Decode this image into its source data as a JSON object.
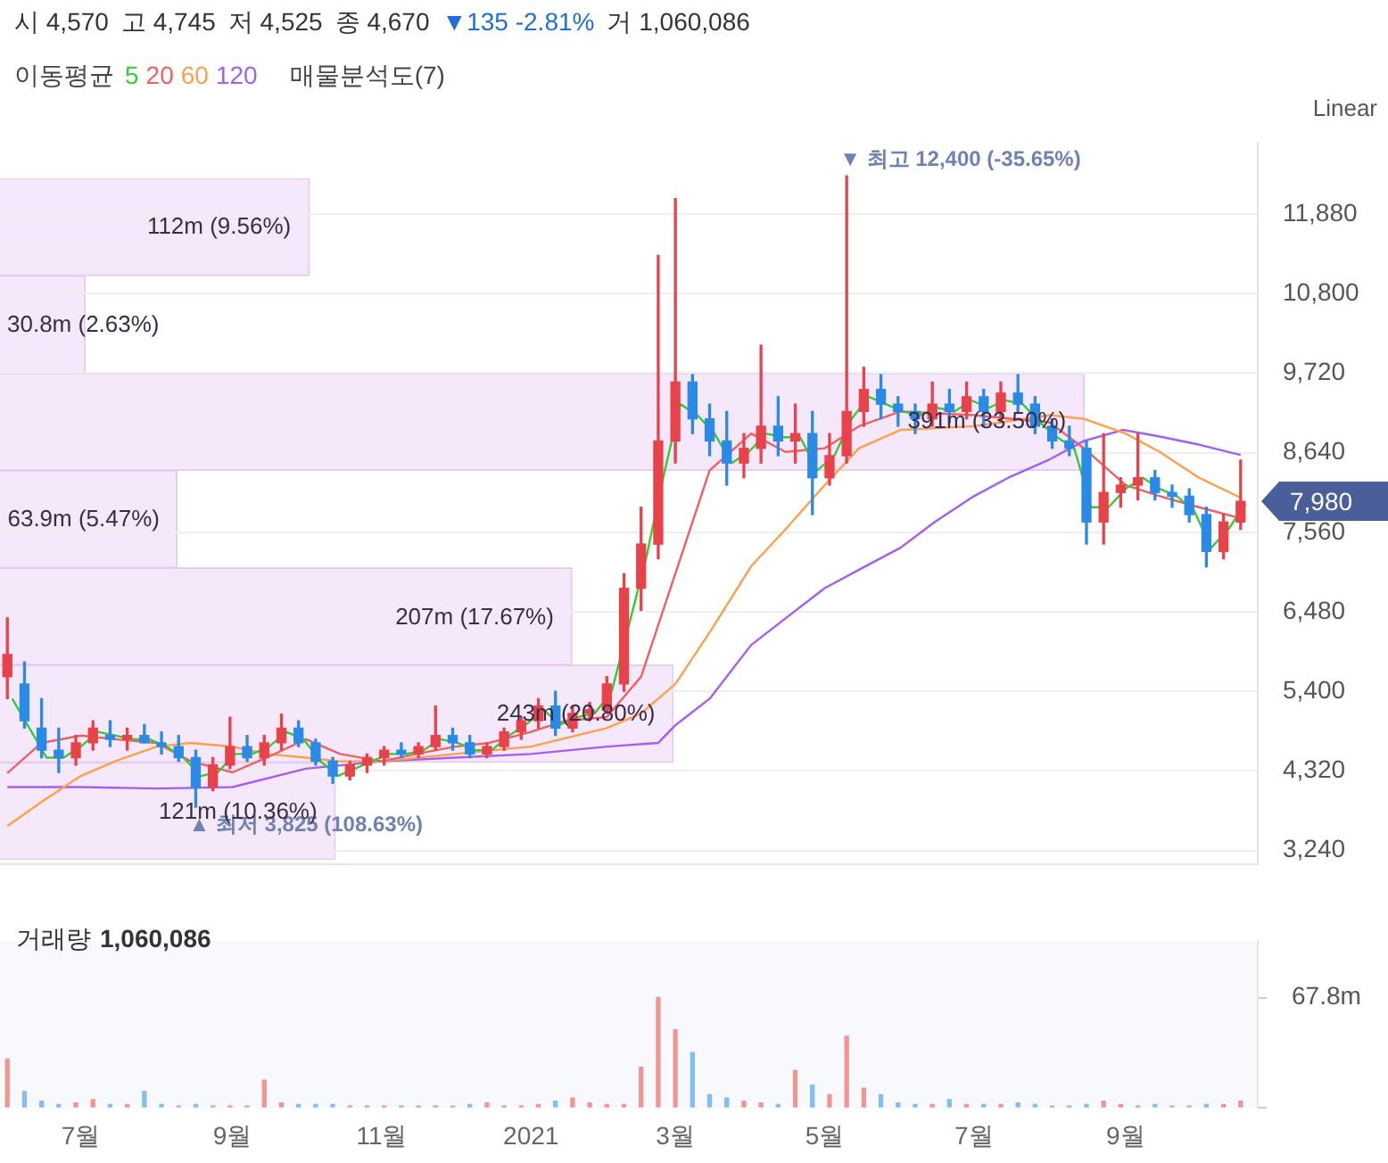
{
  "chart_data": [
    {
      "type": "candlestick",
      "legend_title": "이동평균",
      "legend": "top left",
      "grid": "y",
      "tick_labels": "y",
      "annotations": [
        "시 4,570",
        "고 4,745",
        "저 4,525",
        "종 4,670",
        "▼135 -2.81%",
        "거 1,060,086",
        "Linear",
        "7,980",
        {
          "text": "▼ 최고 12,400 (-35.65%)",
          "x": "2021-05-10",
          "y": 12400
        },
        {
          "text": "▲ 최저 3,825 (108.63%)",
          "x": "2020-08-17",
          "y": 3825
        }
      ],
      "xlim": [
        "2020-05-29",
        "2021-10-25"
      ],
      "ylim": [
        3050,
        12850
      ],
      "yticks": [
        {
          "value": 3240,
          "label": "3,240"
        },
        {
          "value": 4320,
          "label": "4,320"
        },
        {
          "value": 5400,
          "label": "5,400"
        },
        {
          "value": 6480,
          "label": "6,480"
        },
        {
          "value": 7560,
          "label": "7,560"
        },
        {
          "value": 8640,
          "label": "8,640"
        },
        {
          "value": 9720,
          "label": "9,720"
        },
        {
          "value": 10800,
          "label": "10,800"
        },
        {
          "value": 11880,
          "label": "11,880"
        }
      ],
      "x": [
        "2020-06-01",
        "2020-06-08",
        "2020-06-15",
        "2020-06-22",
        "2020-06-29",
        "2020-07-06",
        "2020-07-13",
        "2020-07-20",
        "2020-07-27",
        "2020-08-03",
        "2020-08-10",
        "2020-08-17",
        "2020-08-24",
        "2020-08-31",
        "2020-09-07",
        "2020-09-14",
        "2020-09-21",
        "2020-09-28",
        "2020-10-05",
        "2020-10-12",
        "2020-10-19",
        "2020-10-26",
        "2020-11-02",
        "2020-11-09",
        "2020-11-16",
        "2020-11-23",
        "2020-11-30",
        "2020-12-07",
        "2020-12-14",
        "2020-12-21",
        "2020-12-28",
        "2021-01-04",
        "2021-01-11",
        "2021-01-18",
        "2021-01-25",
        "2021-02-01",
        "2021-02-08",
        "2021-02-15",
        "2021-02-22",
        "2021-03-01",
        "2021-03-08",
        "2021-03-15",
        "2021-03-22",
        "2021-03-29",
        "2021-04-05",
        "2021-04-12",
        "2021-04-19",
        "2021-04-26",
        "2021-05-03",
        "2021-05-10",
        "2021-05-17",
        "2021-05-24",
        "2021-05-31",
        "2021-06-07",
        "2021-06-14",
        "2021-06-21",
        "2021-06-28",
        "2021-07-05",
        "2021-07-12",
        "2021-07-19",
        "2021-07-26",
        "2021-08-02",
        "2021-08-09",
        "2021-08-16",
        "2021-08-23",
        "2021-08-30",
        "2021-09-06",
        "2021-09-13",
        "2021-09-20",
        "2021-09-27",
        "2021-10-04",
        "2021-10-11",
        "2021-10-18"
      ],
      "ohlc": [
        [
          5600,
          6400,
          5300,
          5900
        ],
        [
          5500,
          5800,
          4900,
          5000
        ],
        [
          4900,
          5300,
          4500,
          4600
        ],
        [
          4600,
          4900,
          4300,
          4500
        ],
        [
          4500,
          4800,
          4400,
          4700
        ],
        [
          4700,
          5000,
          4600,
          4900
        ],
        [
          4800,
          5000,
          4650,
          4750
        ],
        [
          4750,
          4900,
          4600,
          4800
        ],
        [
          4800,
          4950,
          4700,
          4700
        ],
        [
          4700,
          4850,
          4550,
          4650
        ],
        [
          4650,
          4800,
          4450,
          4500
        ],
        [
          4500,
          4600,
          3825,
          4100
        ],
        [
          4100,
          4500,
          4050,
          4400
        ],
        [
          4400,
          5050,
          4350,
          4650
        ],
        [
          4650,
          4800,
          4450,
          4500
        ],
        [
          4500,
          4800,
          4400,
          4700
        ],
        [
          4700,
          5090,
          4600,
          4900
        ],
        [
          4900,
          5000,
          4650,
          4700
        ],
        [
          4700,
          4750,
          4400,
          4450
        ],
        [
          4450,
          4500,
          4150,
          4250
        ],
        [
          4250,
          4450,
          4200,
          4400
        ],
        [
          4400,
          4550,
          4300,
          4500
        ],
        [
          4500,
          4650,
          4400,
          4600
        ],
        [
          4600,
          4700,
          4500,
          4550
        ],
        [
          4550,
          4700,
          4500,
          4650
        ],
        [
          4650,
          5200,
          4600,
          4800
        ],
        [
          4800,
          4900,
          4600,
          4700
        ],
        [
          4700,
          4800,
          4500,
          4550
        ],
        [
          4550,
          4700,
          4500,
          4650
        ],
        [
          4650,
          4900,
          4600,
          4850
        ],
        [
          4850,
          5050,
          4750,
          5000
        ],
        [
          5000,
          5300,
          4900,
          5200
        ],
        [
          5200,
          5400,
          4800,
          4900
        ],
        [
          4900,
          5200,
          4850,
          5100
        ],
        [
          5100,
          5250,
          5000,
          5150
        ],
        [
          5150,
          5600,
          5100,
          5500
        ],
        [
          5500,
          7000,
          5400,
          6800
        ],
        [
          6800,
          7900,
          6500,
          7400
        ],
        [
          7400,
          11320,
          7200,
          8800
        ],
        [
          8800,
          12090,
          8500,
          9600
        ],
        [
          9600,
          9700,
          8900,
          9100
        ],
        [
          9100,
          9300,
          8600,
          8800
        ],
        [
          8800,
          9200,
          8200,
          8500
        ],
        [
          8500,
          8900,
          8300,
          8700
        ],
        [
          8700,
          10100,
          8500,
          9000
        ],
        [
          9000,
          9400,
          8600,
          8800
        ],
        [
          8800,
          9300,
          8500,
          8900
        ],
        [
          8900,
          9200,
          7800,
          8300
        ],
        [
          8300,
          8900,
          8200,
          8600
        ],
        [
          8600,
          12400,
          8500,
          9200
        ],
        [
          9200,
          9800,
          9000,
          9500
        ],
        [
          9500,
          9700,
          9100,
          9300
        ],
        [
          9300,
          9400,
          9000,
          9200
        ],
        [
          9200,
          9300,
          8900,
          9100
        ],
        [
          9100,
          9600,
          9000,
          9300
        ],
        [
          9300,
          9500,
          9050,
          9200
        ],
        [
          9200,
          9600,
          9100,
          9400
        ],
        [
          9400,
          9500,
          9000,
          9200
        ],
        [
          9200,
          9600,
          9050,
          9450
        ],
        [
          9450,
          9700,
          9200,
          9300
        ],
        [
          9300,
          9400,
          8900,
          9000
        ],
        [
          9000,
          9100,
          8700,
          8800
        ],
        [
          8800,
          9000,
          8600,
          8700
        ],
        [
          8700,
          8800,
          7400,
          7700
        ],
        [
          7700,
          8900,
          7400,
          8100
        ],
        [
          8100,
          8300,
          7900,
          8200
        ],
        [
          8200,
          8900,
          8000,
          8300
        ],
        [
          8300,
          8400,
          8000,
          8100
        ],
        [
          8100,
          8200,
          7900,
          8050
        ],
        [
          8050,
          8150,
          7700,
          7800
        ],
        [
          7800,
          7900,
          7090,
          7300
        ],
        [
          7300,
          7800,
          7200,
          7700
        ],
        [
          7700,
          8540,
          7600,
          7980
        ]
      ],
      "colors": [
        "#e8424a",
        "#2a8ae6",
        "#2a8ae6",
        "#2a8ae6",
        "#e8424a",
        "#e8424a",
        "#2a8ae6",
        "#e8424a",
        "#2a8ae6",
        "#2a8ae6",
        "#2a8ae6",
        "#2a8ae6",
        "#e8424a",
        "#e8424a",
        "#2a8ae6",
        "#e8424a",
        "#e8424a",
        "#2a8ae6",
        "#2a8ae6",
        "#2a8ae6",
        "#e8424a",
        "#e8424a",
        "#e8424a",
        "#2a8ae6",
        "#e8424a",
        "#e8424a",
        "#2a8ae6",
        "#2a8ae6",
        "#e8424a",
        "#e8424a",
        "#e8424a",
        "#e8424a",
        "#2a8ae6",
        "#e8424a",
        "#e8424a",
        "#e8424a",
        "#e8424a",
        "#e8424a",
        "#e8424a",
        "#e8424a",
        "#2a8ae6",
        "#2a8ae6",
        "#2a8ae6",
        "#e8424a",
        "#e8424a",
        "#2a8ae6",
        "#e8424a",
        "#2a8ae6",
        "#e8424a",
        "#e8424a",
        "#e8424a",
        "#2a8ae6",
        "#2a8ae6",
        "#2a8ae6",
        "#e8424a",
        "#2a8ae6",
        "#e8424a",
        "#2a8ae6",
        "#e8424a",
        "#2a8ae6",
        "#2a8ae6",
        "#2a8ae6",
        "#2a8ae6",
        "#2a8ae6",
        "#e8424a",
        "#e8424a",
        "#e8424a",
        "#2a8ae6",
        "#2a8ae6",
        "#2a8ae6",
        "#2a8ae6",
        "#e8424a",
        "#e8424a"
      ],
      "series": [
        {
          "name": "5",
          "color": "#33cc33",
          "type": "line",
          "x": [
            "2020-06-03",
            "2020-06-10",
            "2020-06-17",
            "2020-06-24",
            "2020-07-01",
            "2020-07-08",
            "2020-07-15",
            "2020-07-22",
            "2020-07-29",
            "2020-08-05",
            "2020-08-12",
            "2020-08-19",
            "2020-08-26",
            "2020-09-02",
            "2020-09-09",
            "2020-09-16",
            "2020-09-23",
            "2020-09-30",
            "2020-10-07",
            "2020-10-14",
            "2020-10-21",
            "2020-10-28",
            "2020-11-04",
            "2020-11-11",
            "2020-11-18",
            "2020-11-25",
            "2020-12-02",
            "2020-12-09",
            "2020-12-16",
            "2020-12-23",
            "2020-12-30",
            "2021-01-06",
            "2021-01-13",
            "2021-01-20",
            "2021-01-27",
            "2021-02-03",
            "2021-02-10",
            "2021-02-17",
            "2021-02-24",
            "2021-03-03",
            "2021-03-10",
            "2021-03-17",
            "2021-03-24",
            "2021-03-31",
            "2021-04-07",
            "2021-04-14",
            "2021-04-21",
            "2021-04-28",
            "2021-05-05",
            "2021-05-12",
            "2021-05-19",
            "2021-05-26",
            "2021-06-02",
            "2021-06-09",
            "2021-06-16",
            "2021-06-23",
            "2021-06-30",
            "2021-07-07",
            "2021-07-14",
            "2021-07-21",
            "2021-07-28",
            "2021-08-04",
            "2021-08-11",
            "2021-08-18",
            "2021-08-25",
            "2021-09-01",
            "2021-09-08",
            "2021-09-15",
            "2021-09-22",
            "2021-09-29",
            "2021-10-06",
            "2021-10-13",
            "2021-10-20"
          ],
          "values": [
            5300,
            4900,
            4500,
            4500,
            4650,
            4850,
            4800,
            4750,
            4750,
            4650,
            4500,
            4250,
            4300,
            4550,
            4550,
            4650,
            4850,
            4750,
            4450,
            4250,
            4350,
            4450,
            4550,
            4550,
            4600,
            4750,
            4700,
            4600,
            4600,
            4800,
            4950,
            5150,
            4950,
            5050,
            5100,
            5400,
            6300,
            7200,
            8300,
            9300,
            9150,
            8900,
            8500,
            8650,
            8900,
            8850,
            8850,
            8400,
            8600,
            9100,
            9400,
            9300,
            9200,
            9150,
            9250,
            9200,
            9350,
            9250,
            9350,
            9300,
            9050,
            8850,
            8700,
            7900,
            7900,
            8150,
            8300,
            8150,
            8050,
            7850,
            7350,
            7600,
            7950
          ]
        },
        {
          "name": "20",
          "color": "#f06060",
          "type": "line",
          "x": [
            "2020-06-01",
            "2020-06-15",
            "2020-07-01",
            "2020-07-15",
            "2020-08-01",
            "2020-08-15",
            "2020-09-01",
            "2020-09-15",
            "2020-10-01",
            "2020-10-15",
            "2020-11-01",
            "2020-11-15",
            "2020-12-01",
            "2020-12-15",
            "2021-01-01",
            "2021-01-15",
            "2021-02-01",
            "2021-02-15",
            "2021-03-01",
            "2021-03-15",
            "2021-04-01",
            "2021-04-15",
            "2021-05-01",
            "2021-05-15",
            "2021-06-01",
            "2021-07-01",
            "2021-08-01",
            "2021-08-15",
            "2021-09-01",
            "2021-09-15",
            "2021-10-01",
            "2021-10-18"
          ],
          "values": [
            4290,
            4700,
            4800,
            4750,
            4700,
            4450,
            4300,
            4500,
            4750,
            4550,
            4450,
            4550,
            4650,
            4700,
            4850,
            5000,
            5050,
            5600,
            7000,
            8400,
            8900,
            8650,
            8700,
            9000,
            9200,
            9150,
            9050,
            8700,
            8200,
            8050,
            7900,
            7750
          ]
        },
        {
          "name": "60",
          "color": "#ff9f4a",
          "type": "line",
          "x": [
            "2020-06-01",
            "2020-06-15",
            "2020-07-01",
            "2020-07-15",
            "2020-08-01",
            "2020-08-15",
            "2020-09-01",
            "2020-09-15",
            "2020-10-01",
            "2020-10-15",
            "2020-11-01",
            "2020-12-01",
            "2021-01-01",
            "2021-02-01",
            "2021-02-15",
            "2021-03-01",
            "2021-03-15",
            "2021-04-01",
            "2021-04-15",
            "2021-05-01",
            "2021-05-15",
            "2021-06-01",
            "2021-07-01",
            "2021-08-01",
            "2021-08-15",
            "2021-09-01",
            "2021-09-15",
            "2021-10-01",
            "2021-10-18"
          ],
          "values": [
            3570,
            3900,
            4250,
            4450,
            4650,
            4700,
            4650,
            4550,
            4500,
            4450,
            4450,
            4550,
            4650,
            4900,
            5100,
            5500,
            6200,
            7100,
            7600,
            8200,
            8700,
            8950,
            9000,
            9150,
            9100,
            8900,
            8650,
            8300,
            8030
          ]
        },
        {
          "name": "120",
          "color": "#a45ef0",
          "type": "line",
          "x": [
            "2020-06-01",
            "2020-07-01",
            "2020-08-01",
            "2020-09-01",
            "2020-10-01",
            "2020-11-01",
            "2020-12-01",
            "2021-01-01",
            "2021-02-01",
            "2021-02-22",
            "2021-03-01",
            "2021-03-15",
            "2021-04-01",
            "2021-04-15",
            "2021-05-01",
            "2021-05-15",
            "2021-06-01",
            "2021-06-15",
            "2021-07-01",
            "2021-07-15",
            "2021-08-01",
            "2021-08-15",
            "2021-08-31",
            "2021-09-15",
            "2021-10-01",
            "2021-10-18"
          ],
          "values": [
            4100,
            4100,
            4080,
            4100,
            4350,
            4450,
            4500,
            4550,
            4650,
            4700,
            4940,
            5300,
            6030,
            6390,
            6800,
            7050,
            7350,
            7700,
            8050,
            8300,
            8550,
            8800,
            8950,
            8860,
            8750,
            8610
          ]
        }
      ]
    },
    {
      "type": "bar",
      "title": "거래량",
      "annotations": [
        "1,060,086"
      ],
      "xlim": [
        "2020-05-29",
        "2021-10-25"
      ],
      "xticks": [
        {
          "value": "2020-07-01",
          "label": "7월"
        },
        {
          "value": "2020-09-01",
          "label": "9월"
        },
        {
          "value": "2020-11-01",
          "label": "11월"
        },
        {
          "value": "2021-01-01",
          "label": "2021"
        },
        {
          "value": "2021-03-01",
          "label": "3월"
        },
        {
          "value": "2021-05-01",
          "label": "5월"
        },
        {
          "value": "2021-07-01",
          "label": "7월"
        },
        {
          "value": "2021-09-01",
          "label": "9월"
        }
      ],
      "ylim": [
        0,
        103
      ],
      "yticks": [
        {
          "value": 0,
          "label": null
        },
        {
          "value": 67.8,
          "label": "67.8m"
        }
      ],
      "x": [
        "2020-06-01",
        "2020-06-08",
        "2020-06-15",
        "2020-06-22",
        "2020-06-29",
        "2020-07-06",
        "2020-07-13",
        "2020-07-20",
        "2020-07-27",
        "2020-08-03",
        "2020-08-10",
        "2020-08-17",
        "2020-08-24",
        "2020-08-31",
        "2020-09-07",
        "2020-09-14",
        "2020-09-21",
        "2020-09-28",
        "2020-10-05",
        "2020-10-12",
        "2020-10-19",
        "2020-10-26",
        "2020-11-02",
        "2020-11-09",
        "2020-11-16",
        "2020-11-23",
        "2020-11-30",
        "2020-12-07",
        "2020-12-14",
        "2020-12-21",
        "2020-12-28",
        "2021-01-04",
        "2021-01-11",
        "2021-01-18",
        "2021-01-25",
        "2021-02-01",
        "2021-02-08",
        "2021-02-15",
        "2021-02-22",
        "2021-03-01",
        "2021-03-08",
        "2021-03-15",
        "2021-03-22",
        "2021-03-29",
        "2021-04-05",
        "2021-04-12",
        "2021-04-19",
        "2021-04-26",
        "2021-05-03",
        "2021-05-10",
        "2021-05-17",
        "2021-05-24",
        "2021-05-31",
        "2021-06-07",
        "2021-06-14",
        "2021-06-21",
        "2021-06-28",
        "2021-07-05",
        "2021-07-12",
        "2021-07-19",
        "2021-07-26",
        "2021-08-02",
        "2021-08-09",
        "2021-08-16",
        "2021-08-23",
        "2021-08-30",
        "2021-09-06",
        "2021-09-13",
        "2021-09-20",
        "2021-09-27",
        "2021-10-04",
        "2021-10-11",
        "2021-10-18"
      ],
      "values": [
        30,
        10,
        4,
        2,
        3,
        5,
        2,
        2,
        10,
        2,
        1,
        2,
        1,
        1,
        1,
        17,
        3,
        2,
        2,
        2,
        1,
        1,
        1,
        1,
        1,
        1,
        1,
        2,
        3,
        1,
        1,
        2,
        4,
        6,
        3,
        2,
        2,
        25,
        68,
        48,
        34,
        8,
        6,
        4,
        3,
        2,
        23,
        14,
        8,
        44,
        12,
        8,
        3,
        2,
        2,
        5,
        2,
        2,
        2,
        3,
        2,
        1,
        1,
        2,
        4,
        2,
        1,
        2,
        1,
        1,
        2,
        2,
        4
      ],
      "colors": [
        "#f29494",
        "#83bdf2",
        "#83bdf2",
        "#83bdf2",
        "#f29494",
        "#f29494",
        "#83bdf2",
        "#f29494",
        "#83bdf2",
        "#83bdf2",
        "#83bdf2",
        "#83bdf2",
        "#f29494",
        "#f29494",
        "#83bdf2",
        "#f29494",
        "#f29494",
        "#83bdf2",
        "#83bdf2",
        "#83bdf2",
        "#f29494",
        "#f29494",
        "#f29494",
        "#83bdf2",
        "#f29494",
        "#f29494",
        "#83bdf2",
        "#83bdf2",
        "#f29494",
        "#f29494",
        "#f29494",
        "#f29494",
        "#83bdf2",
        "#f29494",
        "#f29494",
        "#f29494",
        "#f29494",
        "#f29494",
        "#f29494",
        "#f29494",
        "#83bdf2",
        "#83bdf2",
        "#83bdf2",
        "#f29494",
        "#f29494",
        "#83bdf2",
        "#f29494",
        "#83bdf2",
        "#f29494",
        "#f29494",
        "#f29494",
        "#83bdf2",
        "#83bdf2",
        "#83bdf2",
        "#f29494",
        "#83bdf2",
        "#f29494",
        "#83bdf2",
        "#f29494",
        "#83bdf2",
        "#83bdf2",
        "#83bdf2",
        "#83bdf2",
        "#83bdf2",
        "#f29494",
        "#f29494",
        "#f29494",
        "#83bdf2",
        "#83bdf2",
        "#83bdf2",
        "#83bdf2",
        "#f29494",
        "#f29494"
      ]
    },
    {
      "type": "bar",
      "orientation": "horizontal",
      "title": "매물분석도(7)",
      "color": "#f6e8fb",
      "categories": [
        null,
        null,
        null,
        null,
        null,
        null,
        null
      ],
      "values": [
        9.56,
        2.63,
        33.5,
        5.47,
        17.67,
        20.8,
        10.36
      ],
      "value_labels": [
        "112m (9.56%)",
        "30.8m (2.63%)",
        "391m (33.50%)",
        "63.9m (5.47%)",
        "207m (17.67%)",
        "243m (20.80%)",
        "121m (10.36%)"
      ]
    }
  ]
}
